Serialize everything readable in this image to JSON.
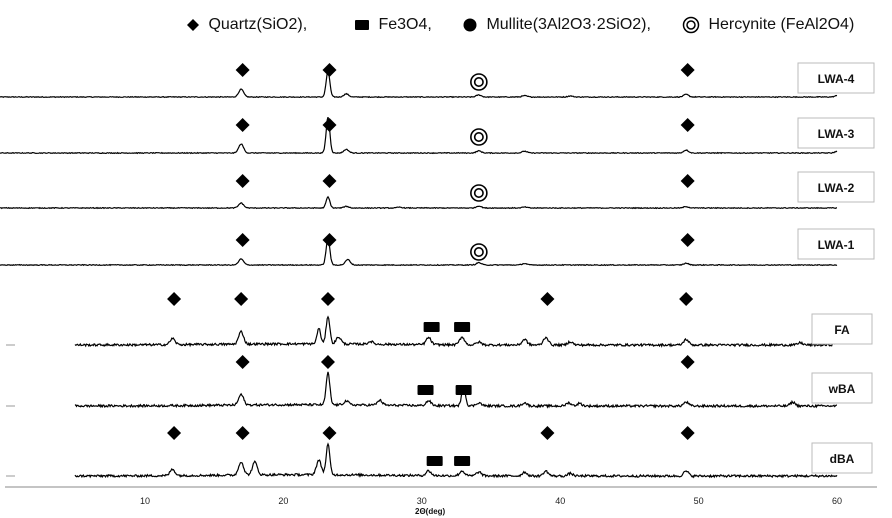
{
  "chart_data": {
    "type": "line",
    "xlabel": "2Θ(deg)",
    "xlim": [
      5,
      60
    ],
    "x_ticks": [
      "10",
      "20",
      "30",
      "40",
      "50",
      "60"
    ],
    "legend": [
      {
        "name": "Quartz(SiO2),",
        "symbol": "diamond"
      },
      {
        "name": "Fe3O4,",
        "symbol": "square"
      },
      {
        "name": "Mullite(3Al2O3·2SiO2),",
        "symbol": "circle"
      },
      {
        "name": "Hercynite (FeAl2O4)",
        "symbol": "double-circle"
      }
    ],
    "series": [
      {
        "name": "LWA-4",
        "x_start": 5,
        "peaks": [
          {
            "x": 20.9,
            "height": 0.3
          },
          {
            "x": 26.6,
            "height": 1.0
          },
          {
            "x": 27.8,
            "height": 0.12
          },
          {
            "x": 36.5,
            "height": 0.08
          },
          {
            "x": 39.5,
            "height": 0.05
          },
          {
            "x": 42.5,
            "height": 0.04
          },
          {
            "x": 50.1,
            "height": 0.1
          },
          {
            "x": 60.0,
            "height": 0.05
          }
        ],
        "markers": [
          {
            "x": 21.0,
            "symbol": "diamond"
          },
          {
            "x": 26.7,
            "symbol": "diamond"
          },
          {
            "x": 36.5,
            "symbol": "double-circle"
          },
          {
            "x": 50.2,
            "symbol": "diamond"
          }
        ]
      },
      {
        "name": "LWA-3",
        "x_start": 5,
        "peaks": [
          {
            "x": 20.9,
            "height": 0.25
          },
          {
            "x": 26.6,
            "height": 1.0
          },
          {
            "x": 27.8,
            "height": 0.1
          },
          {
            "x": 36.5,
            "height": 0.06
          },
          {
            "x": 39.5,
            "height": 0.05
          },
          {
            "x": 50.1,
            "height": 0.08
          },
          {
            "x": 60.0,
            "height": 0.04
          }
        ],
        "markers": [
          {
            "x": 21.0,
            "symbol": "diamond"
          },
          {
            "x": 26.7,
            "symbol": "diamond"
          },
          {
            "x": 36.5,
            "symbol": "double-circle"
          },
          {
            "x": 50.2,
            "symbol": "diamond"
          }
        ]
      },
      {
        "name": "LWA-2",
        "x_start": 5,
        "peaks": [
          {
            "x": 20.9,
            "height": 0.25
          },
          {
            "x": 26.6,
            "height": 0.55
          },
          {
            "x": 27.8,
            "height": 0.08
          },
          {
            "x": 31.3,
            "height": 0.04
          },
          {
            "x": 36.5,
            "height": 0.1
          },
          {
            "x": 39.5,
            "height": 0.05
          },
          {
            "x": 50.1,
            "height": 0.07
          }
        ],
        "markers": [
          {
            "x": 21.0,
            "symbol": "diamond"
          },
          {
            "x": 26.7,
            "symbol": "diamond"
          },
          {
            "x": 36.5,
            "symbol": "double-circle"
          },
          {
            "x": 50.2,
            "symbol": "diamond"
          }
        ]
      },
      {
        "name": "LWA-1",
        "x_start": 5,
        "peaks": [
          {
            "x": 20.9,
            "height": 0.2
          },
          {
            "x": 26.6,
            "height": 0.9
          },
          {
            "x": 27.9,
            "height": 0.18
          },
          {
            "x": 36.5,
            "height": 0.08
          },
          {
            "x": 39.5,
            "height": 0.05
          },
          {
            "x": 50.1,
            "height": 0.06
          }
        ],
        "markers": [
          {
            "x": 21.0,
            "symbol": "diamond"
          },
          {
            "x": 26.7,
            "symbol": "diamond"
          },
          {
            "x": 36.5,
            "symbol": "double-circle"
          },
          {
            "x": 50.2,
            "symbol": "diamond"
          }
        ]
      },
      {
        "name": "FA",
        "x_start": 10,
        "peaks": [
          {
            "x": 16.4,
            "height": 0.22
          },
          {
            "x": 20.9,
            "height": 0.45
          },
          {
            "x": 26.0,
            "height": 0.55
          },
          {
            "x": 26.6,
            "height": 1.0
          },
          {
            "x": 27.3,
            "height": 0.25
          },
          {
            "x": 29.4,
            "height": 0.1
          },
          {
            "x": 33.2,
            "height": 0.25
          },
          {
            "x": 35.4,
            "height": 0.28
          },
          {
            "x": 36.5,
            "height": 0.1
          },
          {
            "x": 39.5,
            "height": 0.2
          },
          {
            "x": 40.9,
            "height": 0.28
          },
          {
            "x": 42.5,
            "height": 0.12
          },
          {
            "x": 50.1,
            "height": 0.2
          },
          {
            "x": 57.6,
            "height": 0.08
          },
          {
            "x": 60.0,
            "height": 0.1
          }
        ],
        "markers": [
          {
            "x": 16.5,
            "symbol": "diamond"
          },
          {
            "x": 20.9,
            "symbol": "diamond"
          },
          {
            "x": 26.6,
            "symbol": "diamond"
          },
          {
            "x": 33.4,
            "symbol": "square"
          },
          {
            "x": 35.4,
            "symbol": "square"
          },
          {
            "x": 41.0,
            "symbol": "diamond"
          },
          {
            "x": 50.1,
            "symbol": "diamond"
          }
        ]
      },
      {
        "name": "wBA",
        "x_start": 10,
        "peaks": [
          {
            "x": 20.9,
            "height": 0.33
          },
          {
            "x": 26.6,
            "height": 1.0
          },
          {
            "x": 27.8,
            "height": 0.12
          },
          {
            "x": 30.0,
            "height": 0.15
          },
          {
            "x": 33.2,
            "height": 0.15
          },
          {
            "x": 35.5,
            "height": 0.6
          },
          {
            "x": 36.5,
            "height": 0.1
          },
          {
            "x": 39.5,
            "height": 0.1
          },
          {
            "x": 42.4,
            "height": 0.1
          },
          {
            "x": 43.1,
            "height": 0.08
          },
          {
            "x": 50.1,
            "height": 0.12
          },
          {
            "x": 57.1,
            "height": 0.12
          }
        ],
        "markers": [
          {
            "x": 21.0,
            "symbol": "diamond"
          },
          {
            "x": 26.6,
            "symbol": "diamond"
          },
          {
            "x": 33.0,
            "symbol": "square"
          },
          {
            "x": 35.5,
            "symbol": "square"
          },
          {
            "x": 50.2,
            "symbol": "diamond"
          }
        ]
      },
      {
        "name": "dBA",
        "x_start": 10,
        "peaks": [
          {
            "x": 16.4,
            "height": 0.2
          },
          {
            "x": 20.9,
            "height": 0.42
          },
          {
            "x": 21.8,
            "height": 0.4
          },
          {
            "x": 26.0,
            "height": 0.45
          },
          {
            "x": 26.6,
            "height": 0.95
          },
          {
            "x": 33.2,
            "height": 0.15
          },
          {
            "x": 35.4,
            "height": 0.15
          },
          {
            "x": 36.5,
            "height": 0.12
          },
          {
            "x": 39.5,
            "height": 0.12
          },
          {
            "x": 40.9,
            "height": 0.15
          },
          {
            "x": 42.5,
            "height": 0.08
          },
          {
            "x": 50.1,
            "height": 0.15
          }
        ],
        "markers": [
          {
            "x": 16.5,
            "symbol": "diamond"
          },
          {
            "x": 21.0,
            "symbol": "diamond"
          },
          {
            "x": 26.7,
            "symbol": "diamond"
          },
          {
            "x": 33.6,
            "symbol": "square"
          },
          {
            "x": 35.4,
            "symbol": "square"
          },
          {
            "x": 41.0,
            "symbol": "diamond"
          },
          {
            "x": 50.2,
            "symbol": "diamond"
          }
        ]
      }
    ]
  }
}
